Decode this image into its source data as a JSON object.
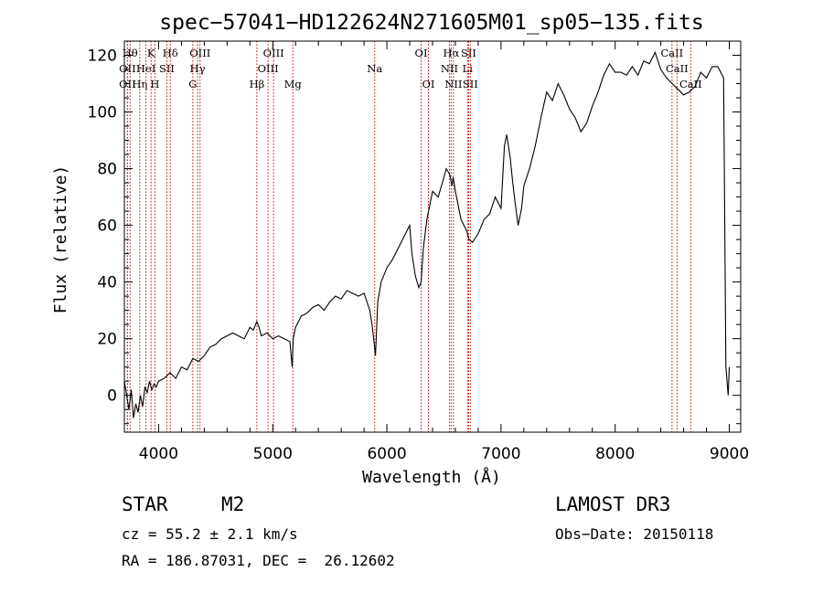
{
  "chart_data": {
    "type": "line",
    "title": "spec−57041−HD122624N271605M01_sp05−135.fits",
    "xlabel": "Wavelength (Å)",
    "ylabel": "Flux (relative)",
    "xlim": [
      3700,
      9100
    ],
    "ylim": [
      -13,
      125
    ],
    "x_ticks": [
      4000,
      5000,
      6000,
      7000,
      8000,
      9000
    ],
    "y_ticks": [
      0,
      20,
      40,
      60,
      80,
      100,
      120
    ],
    "grid": false,
    "line_color": "#000000",
    "marker_color": "#cc0000",
    "series": [
      {
        "name": "spectrum",
        "x": [
          3700,
          3720,
          3740,
          3760,
          3780,
          3800,
          3820,
          3840,
          3860,
          3880,
          3900,
          3920,
          3940,
          3960,
          3980,
          4000,
          4050,
          4100,
          4150,
          4200,
          4250,
          4300,
          4350,
          4400,
          4450,
          4500,
          4550,
          4600,
          4650,
          4700,
          4750,
          4800,
          4830,
          4860,
          4880,
          4900,
          4950,
          5000,
          5050,
          5100,
          5150,
          5170,
          5180,
          5200,
          5250,
          5300,
          5350,
          5400,
          5450,
          5500,
          5550,
          5600,
          5650,
          5700,
          5750,
          5800,
          5850,
          5870,
          5890,
          5900,
          5920,
          5950,
          6000,
          6050,
          6100,
          6150,
          6200,
          6220,
          6250,
          6280,
          6300,
          6320,
          6350,
          6400,
          6450,
          6500,
          6520,
          6550,
          6570,
          6580,
          6600,
          6650,
          6700,
          6720,
          6750,
          6800,
          6850,
          6900,
          6950,
          7000,
          7030,
          7050,
          7080,
          7100,
          7120,
          7150,
          7180,
          7200,
          7250,
          7300,
          7350,
          7400,
          7450,
          7500,
          7550,
          7600,
          7650,
          7680,
          7700,
          7750,
          7800,
          7850,
          7900,
          7950,
          8000,
          8050,
          8100,
          8150,
          8200,
          8250,
          8300,
          8350,
          8400,
          8450,
          8500,
          8550,
          8600,
          8650,
          8700,
          8750,
          8800,
          8850,
          8900,
          8950,
          8970,
          8990,
          9000
        ],
        "y": [
          5,
          0,
          -5,
          2,
          -8,
          -3,
          -6,
          0,
          -4,
          3,
          1,
          5,
          2,
          4,
          3,
          5,
          6,
          8,
          6,
          10,
          9,
          13,
          12,
          14,
          17,
          18,
          20,
          21,
          22,
          21,
          20,
          24,
          23,
          26,
          24,
          21,
          22,
          20,
          21,
          20,
          19,
          10,
          20,
          24,
          28,
          29,
          31,
          32,
          30,
          33,
          35,
          34,
          37,
          36,
          35,
          36,
          30,
          25,
          18,
          14,
          33,
          40,
          45,
          48,
          52,
          56,
          60,
          50,
          42,
          38,
          40,
          52,
          62,
          72,
          70,
          77,
          80,
          78,
          74,
          77,
          72,
          62,
          58,
          55,
          54,
          57,
          62,
          64,
          70,
          66,
          88,
          92,
          84,
          76,
          69,
          60,
          66,
          74,
          80,
          88,
          98,
          107,
          104,
          110,
          106,
          101,
          98,
          95,
          93,
          96,
          102,
          107,
          113,
          117,
          114,
          114,
          113,
          116,
          113,
          118,
          117,
          121,
          115,
          112,
          110,
          108,
          106,
          107,
          109,
          114,
          112,
          116,
          116,
          112,
          10,
          0,
          10
        ]
      }
    ],
    "line_markers": [
      {
        "x": 3750,
        "label": "Hθ",
        "row": 1
      },
      {
        "x": 3727,
        "label": "OII",
        "row": 2
      },
      {
        "x": 3727,
        "label": "OII",
        "row": 3
      },
      {
        "x": 3835,
        "label": "Hη",
        "row": 3
      },
      {
        "x": 3889,
        "label": "HeI",
        "row": 2
      },
      {
        "x": 3934,
        "label": "K",
        "row": 1
      },
      {
        "x": 3968,
        "label": "H",
        "row": 3
      },
      {
        "x": 4072,
        "label": "SII",
        "row": 2
      },
      {
        "x": 4102,
        "label": "Hδ",
        "row": 1
      },
      {
        "x": 4300,
        "label": "G",
        "row": 3
      },
      {
        "x": 4341,
        "label": "Hγ",
        "row": 2
      },
      {
        "x": 4363,
        "label": "OIII",
        "row": 1
      },
      {
        "x": 4861,
        "label": "Hβ",
        "row": 3
      },
      {
        "x": 4959,
        "label": "OIII",
        "row": 2
      },
      {
        "x": 5007,
        "label": "OIII",
        "row": 1
      },
      {
        "x": 5176,
        "label": "Mg",
        "row": 3
      },
      {
        "x": 5893,
        "label": "Na",
        "row": 2
      },
      {
        "x": 6300,
        "label": "OI",
        "row": 1
      },
      {
        "x": 6364,
        "label": "OI",
        "row": 3
      },
      {
        "x": 6548,
        "label": "NII",
        "row": 2
      },
      {
        "x": 6563,
        "label": "Hα",
        "row": 1
      },
      {
        "x": 6583,
        "label": "NII",
        "row": 3
      },
      {
        "x": 6707,
        "label": "Li",
        "row": 2
      },
      {
        "x": 6716,
        "label": "SII",
        "row": 1
      },
      {
        "x": 6731,
        "label": "SII",
        "row": 3
      },
      {
        "x": 8498,
        "label": "CaII",
        "row": 1
      },
      {
        "x": 8542,
        "label": "CaII",
        "row": 2
      },
      {
        "x": 8662,
        "label": "CaII",
        "row": 3
      }
    ]
  },
  "footer": {
    "object_class": "STAR",
    "subclass": "M2",
    "survey": "LAMOST DR3",
    "redshift": "cz = 55.2 ± 2.1 km/s",
    "obs_date": "Obs−Date: 20150118",
    "coords": "RA = 186.87031, DEC =  26.12602"
  }
}
